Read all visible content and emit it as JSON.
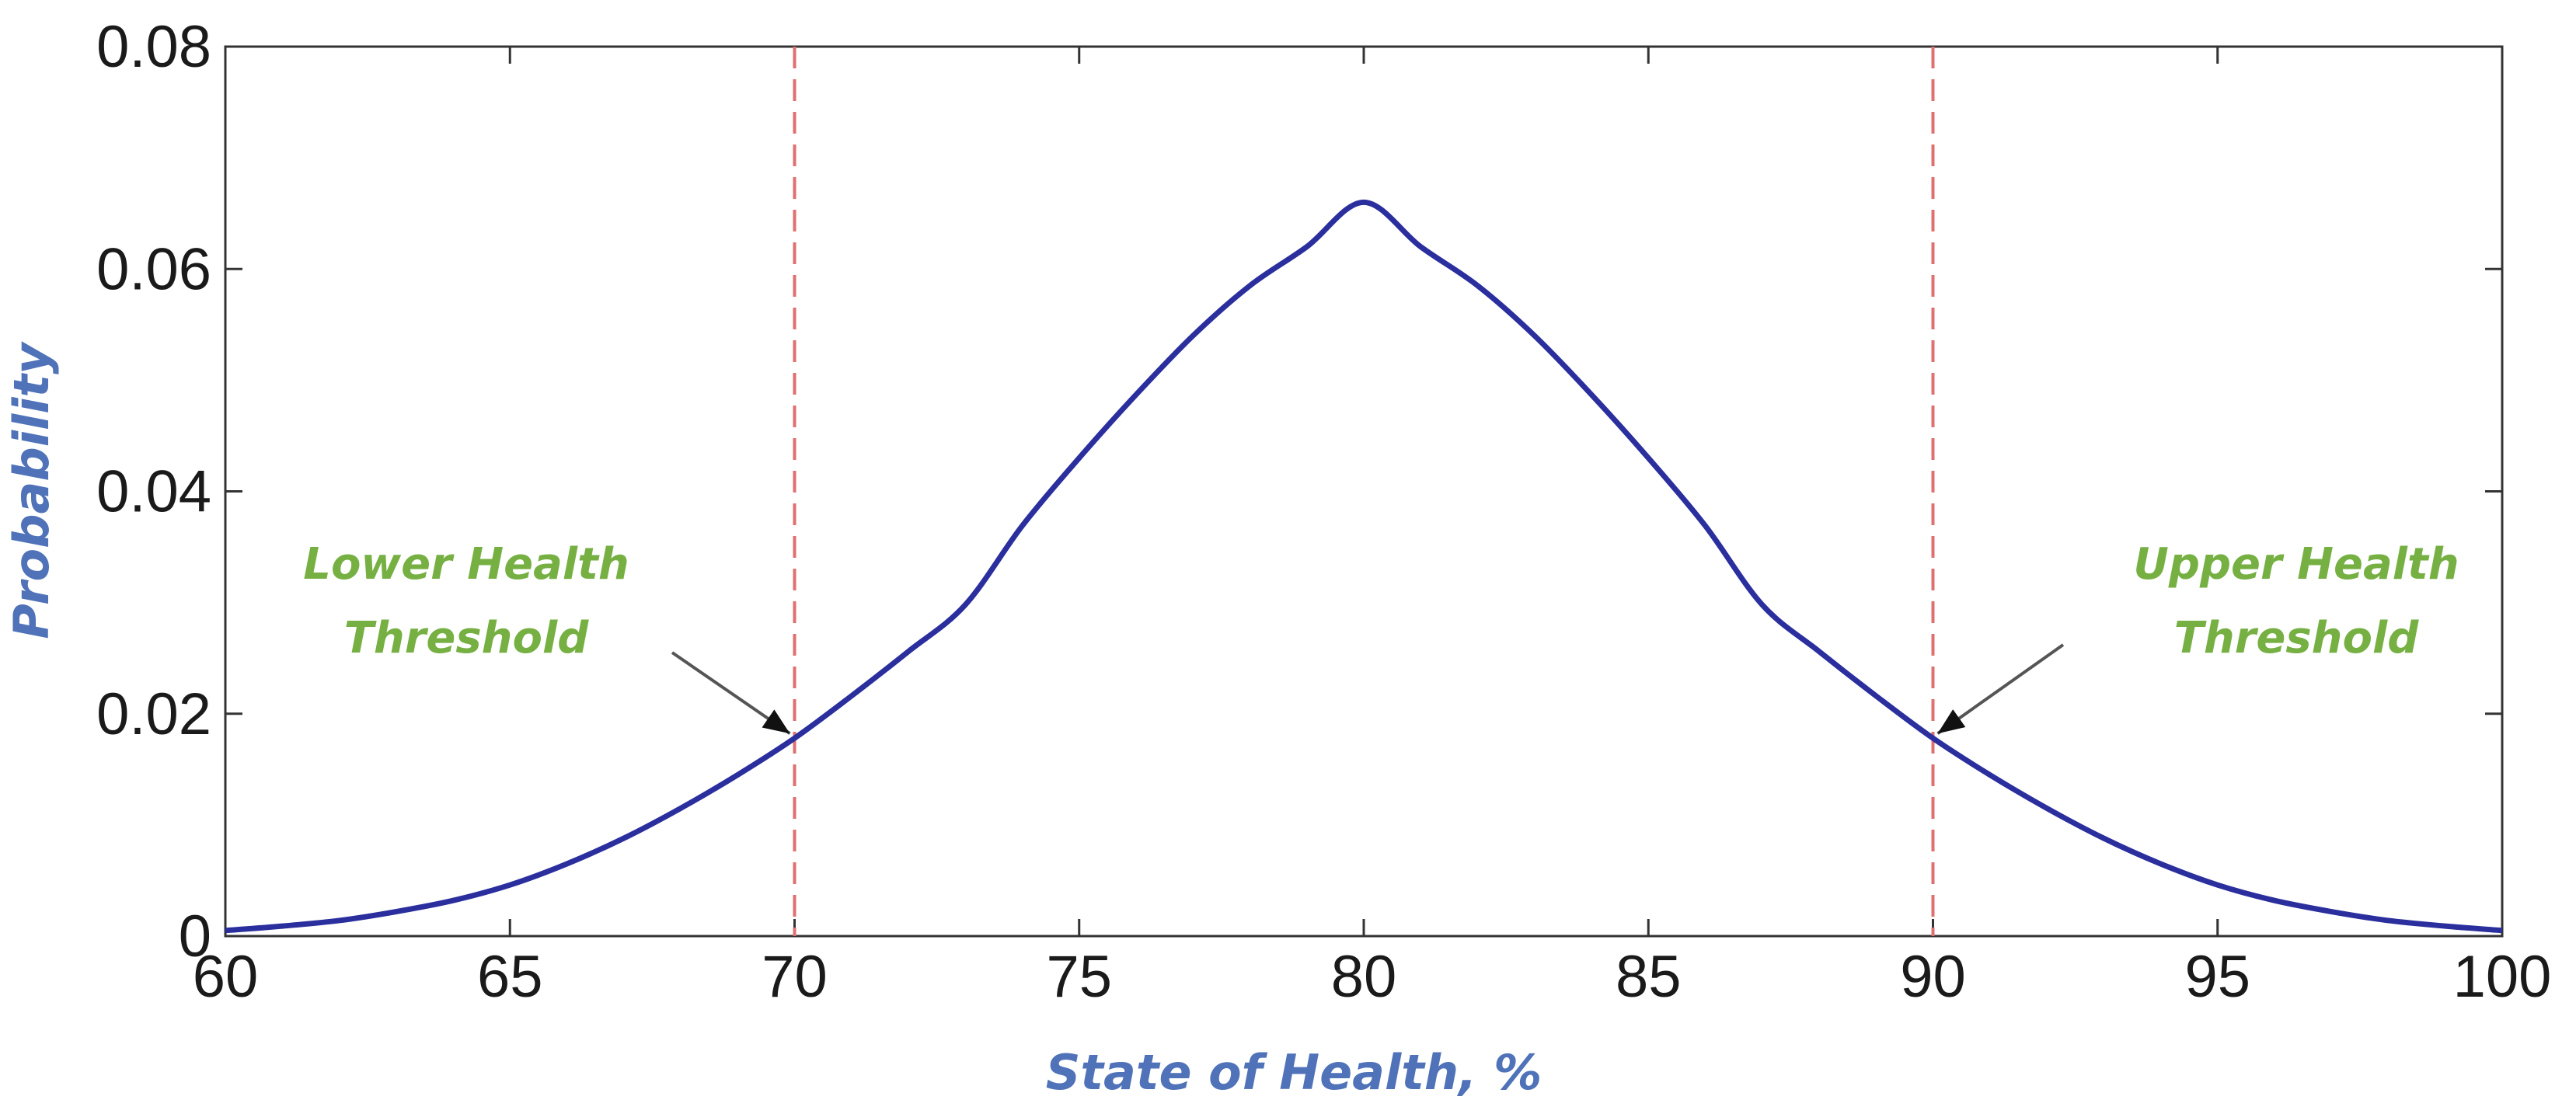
{
  "chart_data": {
    "type": "line",
    "title": "",
    "xlabel": "State of Health, %",
    "ylabel": "Probability",
    "xlim": [
      60,
      100
    ],
    "ylim": [
      0,
      0.08
    ],
    "x_ticks": [
      60,
      65,
      70,
      75,
      80,
      85,
      90,
      95,
      100
    ],
    "x_tick_labels": [
      "60",
      "65",
      "70",
      "75",
      "80",
      "85",
      "90",
      "95",
      "100"
    ],
    "y_ticks": [
      0,
      0.02,
      0.04,
      0.06,
      0.08
    ],
    "y_tick_labels": [
      "0",
      "0.02",
      "0.04",
      "0.06",
      "0.08"
    ],
    "grid": false,
    "series": [
      {
        "color": "#2b2f9e",
        "x": [
          60,
          61,
          62,
          63,
          64,
          65,
          66,
          67,
          68,
          69,
          70,
          71,
          72,
          73,
          74,
          75,
          76,
          77,
          78,
          79,
          80,
          81,
          82,
          83,
          84,
          85,
          86,
          87,
          88,
          89,
          90,
          91,
          92,
          93,
          94,
          95,
          96,
          97,
          98,
          99,
          100
        ],
        "y": [
          0.0005,
          0.0009,
          0.0014,
          0.0022,
          0.0032,
          0.0046,
          0.0065,
          0.0088,
          0.0115,
          0.0145,
          0.0178,
          0.0216,
          0.0256,
          0.0298,
          0.0369,
          0.043,
          0.0487,
          0.054,
          0.0585,
          0.062,
          0.066,
          0.062,
          0.0585,
          0.054,
          0.0487,
          0.043,
          0.0369,
          0.0298,
          0.0256,
          0.0216,
          0.0178,
          0.0145,
          0.0115,
          0.0088,
          0.0065,
          0.0046,
          0.0032,
          0.0022,
          0.0014,
          0.0009,
          0.0005
        ]
      }
    ],
    "thresholds": [
      {
        "x": 70,
        "color": "#e07070",
        "label_line1": "Lower Health",
        "label_line2": "Threshold"
      },
      {
        "x": 90,
        "color": "#e07070",
        "label_line1": "Upper Health",
        "label_line2": "Threshold"
      }
    ],
    "annotation_color": "#76b043",
    "axis_title_color": "#4f72b8"
  }
}
